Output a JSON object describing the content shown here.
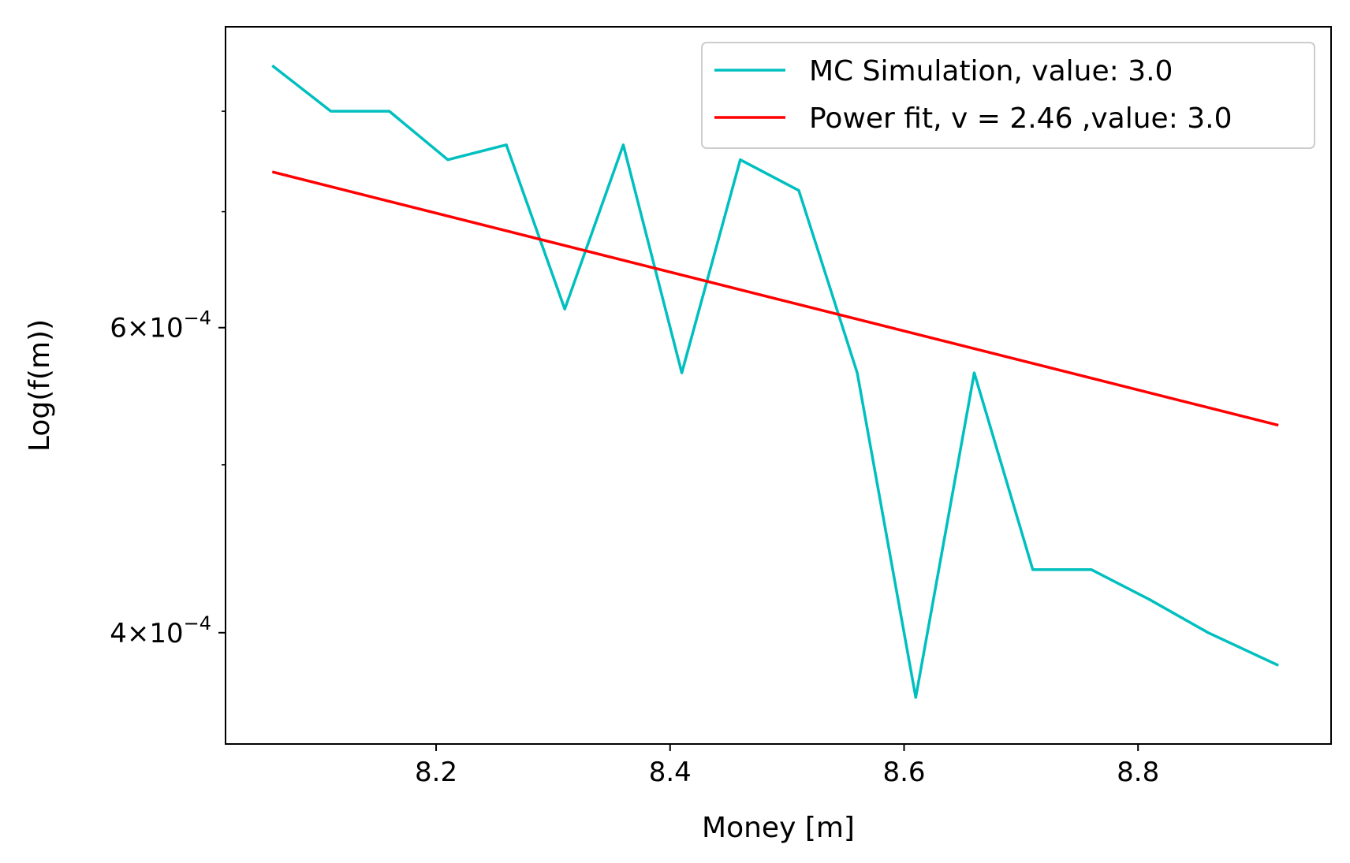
{
  "chart_data": {
    "type": "line",
    "xlabel": "Money [m]",
    "ylabel": "Log(f(m))",
    "x_scale": "linear",
    "y_scale": "log",
    "xlim": [
      8.02,
      8.965
    ],
    "ylim": [
      0.000345,
      0.000895
    ],
    "grid": false,
    "legend_position": "top-right",
    "x_ticks": [
      {
        "value": 8.2,
        "label": "8.2"
      },
      {
        "value": 8.4,
        "label": "8.4"
      },
      {
        "value": 8.6,
        "label": "8.6"
      },
      {
        "value": 8.8,
        "label": "8.8"
      }
    ],
    "y_ticks": [
      {
        "value": 0.0004,
        "mantissa": "4",
        "exponent": "−4"
      },
      {
        "value": 0.0006,
        "mantissa": "6",
        "exponent": "−4"
      }
    ],
    "y_minor_ticks": [
      0.0005,
      0.0007,
      0.0008
    ],
    "series": [
      {
        "name": "MC Simulation, value: 3.0",
        "color": "#00bfbf",
        "x": [
          8.06,
          8.11,
          8.16,
          8.21,
          8.26,
          8.31,
          8.36,
          8.41,
          8.46,
          8.51,
          8.56,
          8.61,
          8.66,
          8.71,
          8.76,
          8.81,
          8.86,
          8.92
        ],
        "y": [
          0.00085,
          0.0008,
          0.0008,
          0.00075,
          0.000765,
          0.000615,
          0.000765,
          0.000565,
          0.00075,
          0.00072,
          0.000565,
          0.000367,
          0.000565,
          0.000435,
          0.000435,
          0.000418,
          0.0004,
          0.000383
        ]
      },
      {
        "name": "Power fit, v = 2.46 ,value: 3.0",
        "color": "#ff0000",
        "x": [
          8.06,
          8.92
        ],
        "y": [
          0.000738,
          0.000527
        ]
      }
    ]
  }
}
